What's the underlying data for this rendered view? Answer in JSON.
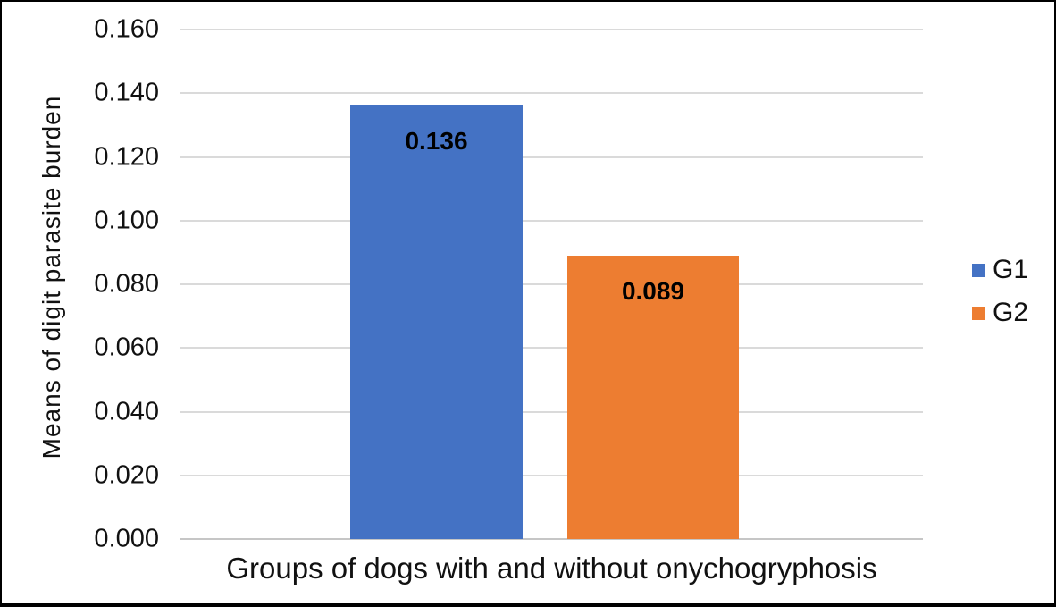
{
  "chart_data": {
    "type": "bar",
    "title": "",
    "categories": [
      ""
    ],
    "series": [
      {
        "name": "G1",
        "values": [
          0.136
        ],
        "data_labels": [
          "0.136"
        ],
        "color": "#4472C4"
      },
      {
        "name": "G2",
        "values": [
          0.089
        ],
        "data_labels": [
          "0.089"
        ],
        "color": "#ED7D31"
      }
    ],
    "xlabel": "Groups of dogs with and without onychogryphosis",
    "ylabel": "Means of digit parasite burden",
    "ylim": [
      0,
      0.16
    ],
    "ytick_step": 0.02,
    "yticks": [
      "0.160",
      "0.140",
      "0.120",
      "0.100",
      "0.080",
      "0.060",
      "0.040",
      "0.020",
      "0.000"
    ],
    "grid": true,
    "legend": {
      "position": "right",
      "entries": [
        "G1",
        "G2"
      ]
    }
  },
  "colors": {
    "gridline": "#dadada",
    "axis_line": "#c6c6c6",
    "text": "#111111",
    "border": "#000000",
    "background": "#ffffff"
  }
}
